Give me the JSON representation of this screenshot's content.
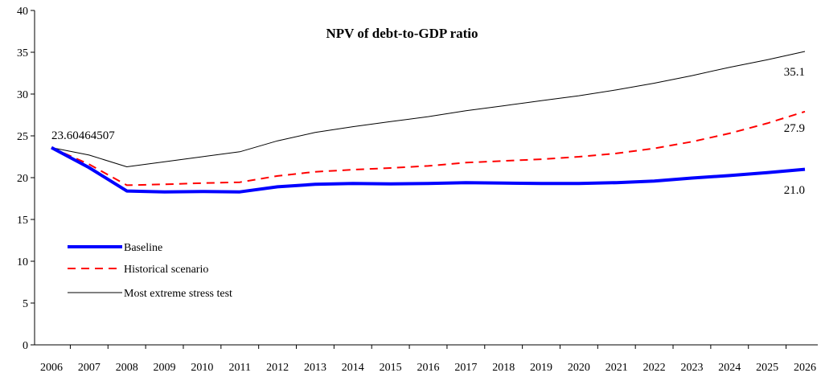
{
  "chart_data": {
    "type": "line",
    "title": "NPV of debt-to-GDP ratio",
    "xlabel": "",
    "ylabel": "",
    "ylim": [
      0,
      40
    ],
    "yticks": [
      0,
      5,
      10,
      15,
      20,
      25,
      30,
      35,
      40
    ],
    "categories": [
      "2006",
      "2007",
      "2008",
      "2009",
      "2010",
      "2011",
      "2012",
      "2013",
      "2014",
      "2015",
      "2016",
      "2017",
      "2018",
      "2019",
      "2020",
      "2021",
      "2022",
      "2023",
      "2024",
      "2025",
      "2026"
    ],
    "grid": false,
    "legend_position": "bottom-left",
    "series": [
      {
        "name": "Baseline",
        "color": "#0000ff",
        "style": "solid-thick",
        "values": [
          23.6,
          21.2,
          18.4,
          18.3,
          18.35,
          18.3,
          18.9,
          19.2,
          19.3,
          19.25,
          19.3,
          19.4,
          19.35,
          19.3,
          19.3,
          19.4,
          19.6,
          19.95,
          20.25,
          20.6,
          21.0
        ]
      },
      {
        "name": "Historical scenario",
        "color": "#ff0000",
        "style": "dashed",
        "values": [
          23.6,
          21.6,
          19.1,
          19.2,
          19.35,
          19.45,
          20.2,
          20.7,
          20.95,
          21.15,
          21.4,
          21.8,
          22.0,
          22.2,
          22.5,
          22.9,
          23.5,
          24.3,
          25.3,
          26.5,
          27.9
        ]
      },
      {
        "name": "Most extreme stress test",
        "color": "#000000",
        "style": "solid-thin",
        "values": [
          23.6,
          22.7,
          21.3,
          21.9,
          22.5,
          23.1,
          24.4,
          25.4,
          26.1,
          26.7,
          27.3,
          28.0,
          28.6,
          29.2,
          29.8,
          30.5,
          31.3,
          32.2,
          33.2,
          34.1,
          35.1
        ]
      }
    ],
    "annotations": {
      "start": "23.60464507",
      "end_extreme": "35.1",
      "end_historical": "27.9",
      "end_baseline": "21.0"
    }
  }
}
